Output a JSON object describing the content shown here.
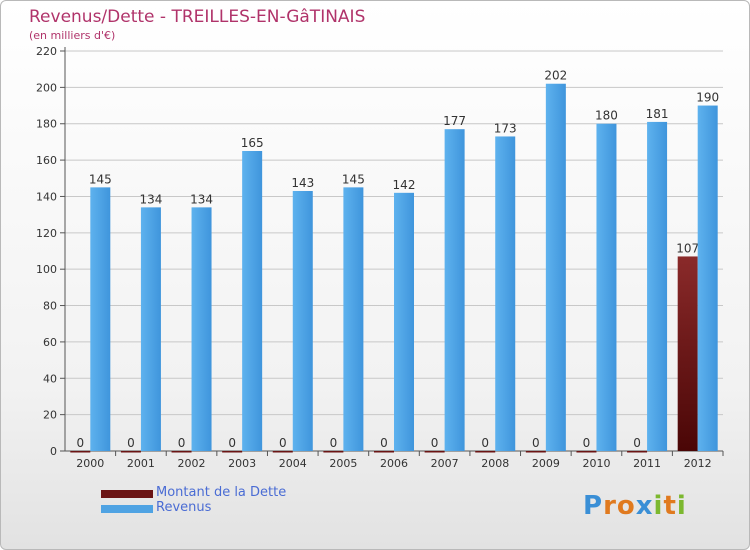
{
  "header": {
    "title": "Revenus/Dette - TREILLES-EN-GâTINAIS",
    "subtitle": "(en milliers d'€)"
  },
  "chart_data": {
    "type": "bar",
    "title": "Revenus/Dette - TREILLES-EN-GâTINAIS",
    "ylabel": "(en milliers d'€)",
    "xlabel": "",
    "categories": [
      "2000",
      "2001",
      "2002",
      "2003",
      "2004",
      "2005",
      "2006",
      "2007",
      "2008",
      "2009",
      "2010",
      "2011",
      "2012"
    ],
    "series": [
      {
        "name": "Montant de la Dette",
        "color": "#6b1414",
        "values": [
          0,
          0,
          0,
          0,
          0,
          0,
          0,
          0,
          0,
          0,
          0,
          0,
          107
        ]
      },
      {
        "name": "Revenus",
        "color": "#4fa3e3",
        "values": [
          145,
          134,
          134,
          165,
          143,
          145,
          142,
          177,
          173,
          202,
          180,
          181,
          190
        ]
      }
    ],
    "ylim": [
      0,
      220
    ],
    "yticks": [
      0,
      20,
      40,
      60,
      80,
      100,
      120,
      140,
      160,
      180,
      200,
      220
    ],
    "grid": true,
    "legend_position": "bottom-left"
  },
  "legend": {
    "items": [
      {
        "label": "Montant de la Dette",
        "color": "#6b1414"
      },
      {
        "label": "Revenus",
        "color": "#4fa3e3"
      }
    ]
  },
  "logo": {
    "letters": [
      "P",
      "r",
      "o",
      "x",
      "i",
      "t",
      "i"
    ],
    "colors": [
      "#3a8fd6",
      "#e07a1f",
      "#e07a1f",
      "#3a8fd6",
      "#7cb82f",
      "#e07a1f",
      "#7cb82f"
    ]
  }
}
